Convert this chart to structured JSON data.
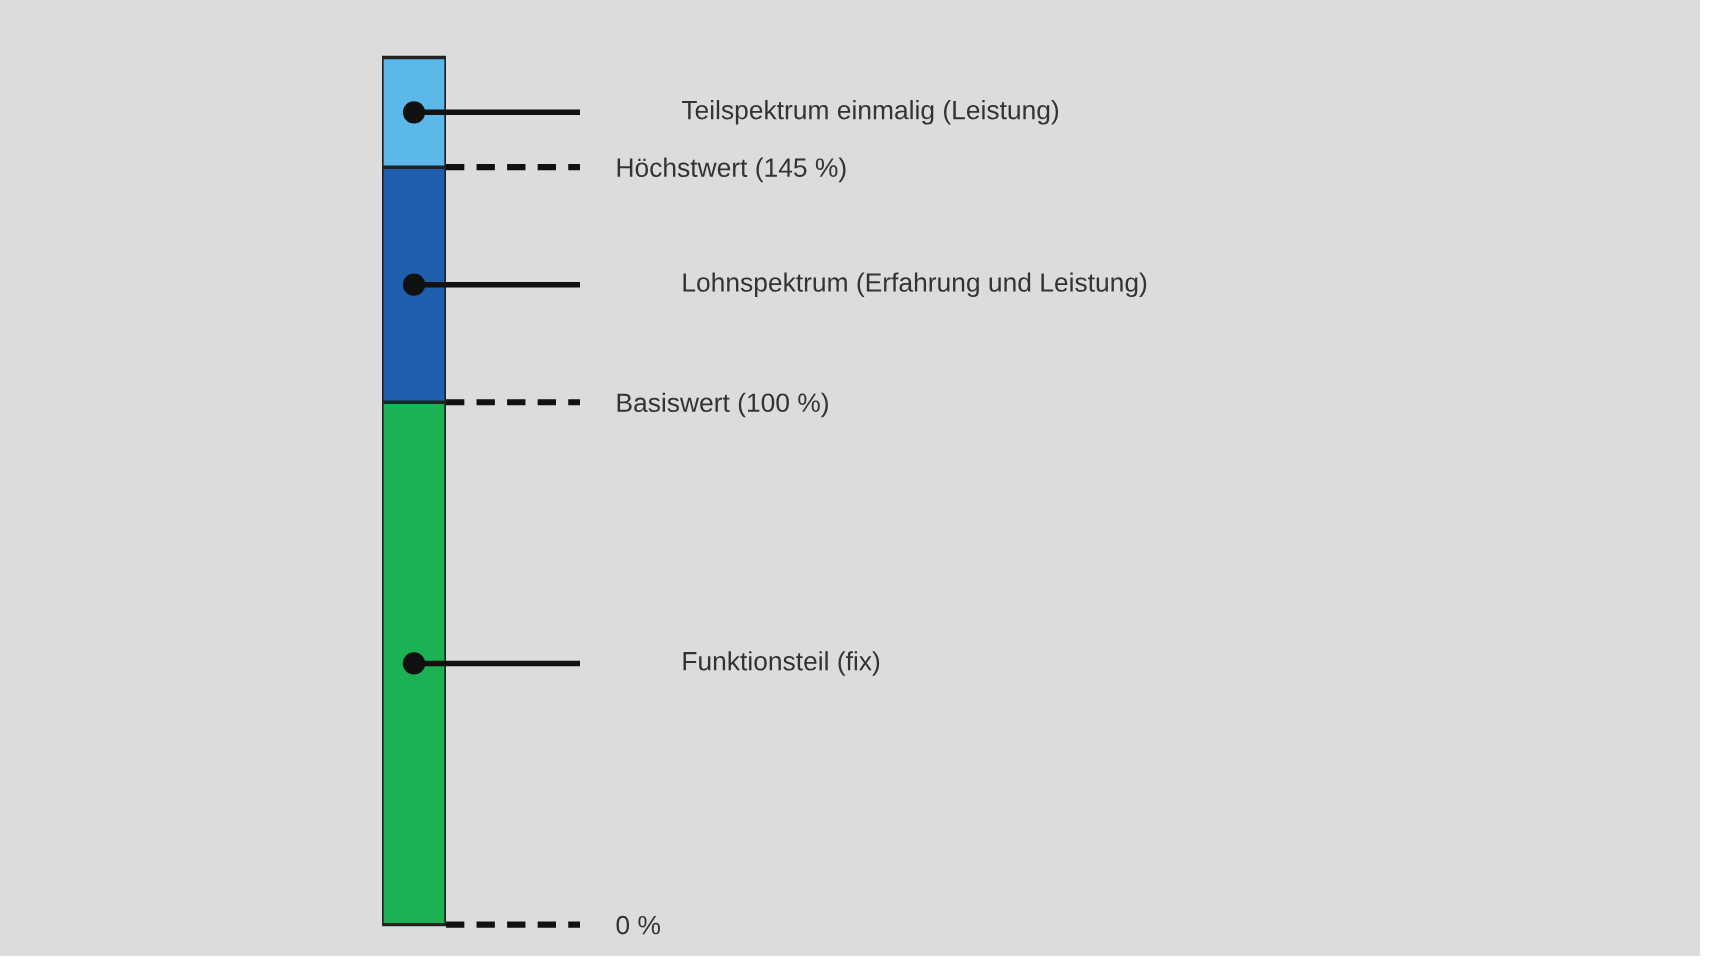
{
  "chart_data": {
    "type": "bar",
    "stacked": true,
    "categories": [
      null
    ],
    "series": [
      {
        "color": "#1db155",
        "values": [
          100
        ]
      },
      {
        "color": "#1f5fad",
        "values": [
          45
        ]
      },
      {
        "color": "#5bb8e8",
        "values": [
          21
        ]
      }
    ],
    "ylim": [
      -6,
      177
    ],
    "yticks": [
      {
        "value": 0,
        "label": "0 %"
      },
      {
        "value": 100,
        "label": "Basiswert (100 %)"
      },
      {
        "value": 145,
        "label": "Höchstwert (145 %)"
      }
    ],
    "annotations": [
      "Teilspektrum einmalig (Leistung)",
      "Lohnspektrum (Erfahrung und Leistung)",
      "Funktionsteil (fix)"
    ]
  }
}
